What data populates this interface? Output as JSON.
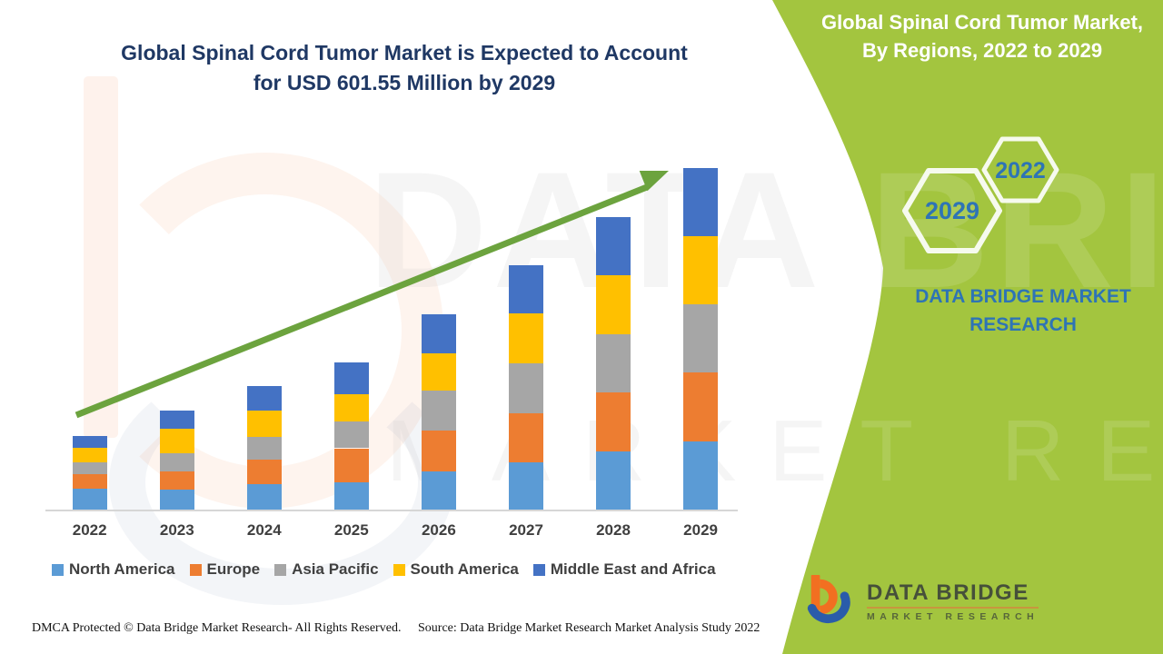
{
  "page": {
    "background": "#FFFFFF",
    "accent_green": "#A3C53F"
  },
  "header": {
    "title_line1": "Global Spinal Cord Tumor Market is Expected to Account",
    "title_line2": "for USD 601.55 Million by 2029",
    "title_color": "#1F3864"
  },
  "side_panel": {
    "title_line1": "Global Spinal Cord Tumor Market,",
    "title_line2": "By Regions, 2022 to 2029",
    "hexagons": [
      {
        "label": "2029"
      },
      {
        "label": "2022"
      }
    ],
    "brand_line1": "DATA BRIDGE MARKET",
    "brand_line2": "RESEARCH",
    "brand_text_color": "#2E74B5"
  },
  "watermark": {
    "line1": "DATA BRIDGE",
    "line2": "MARKET RESEARCH"
  },
  "chart_data": {
    "type": "bar",
    "stacked": true,
    "title": "Global Spinal Cord Tumor Market is Expected to Account for USD 601.55 Million by 2029",
    "unit": "USD Million",
    "categories": [
      "2022",
      "2023",
      "2024",
      "2025",
      "2026",
      "2027",
      "2028",
      "2029"
    ],
    "series": [
      {
        "name": "North America",
        "color": "#5B9BD5",
        "values": [
          37.5,
          35.0,
          45.5,
          48.0,
          67.0,
          83.0,
          102.0,
          120.6
        ]
      },
      {
        "name": "Europe",
        "color": "#ED7D31",
        "values": [
          25.2,
          32.0,
          43.0,
          60.0,
          72.5,
          86.0,
          104.5,
          121.6
        ]
      },
      {
        "name": "Asia Pacific",
        "color": "#A6A6A6",
        "values": [
          19.8,
          32.0,
          40.0,
          47.5,
          70.0,
          88.5,
          102.0,
          119.6
        ]
      },
      {
        "name": "South America",
        "color": "#FFC000",
        "values": [
          25.7,
          43.0,
          45.5,
          48.0,
          66.0,
          88.5,
          104.5,
          120.6
        ]
      },
      {
        "name": "Middle East and Africa",
        "color": "#4472C4",
        "values": [
          21.6,
          32.0,
          43.0,
          56.5,
          69.0,
          84.0,
          102.5,
          119.15
        ]
      }
    ],
    "totals": [
      129.8,
      174.0,
      217.0,
      260.0,
      344.5,
      430.0,
      515.5,
      601.55
    ],
    "projected_2029_total": 601.55,
    "trend_arrow": true,
    "trend_arrow_color": "#6CA33E",
    "legend_position": "bottom",
    "grid": false,
    "axis": {
      "baseline_color": "#D6D6D6",
      "label_color": "#3F3F3F"
    }
  },
  "footer": {
    "left": "DMCA Protected © Data Bridge Market Research- All Rights Reserved.",
    "right": "Source: Data Bridge Market Research Market Analysis Study 2022"
  },
  "logo": {
    "name_top": "DATA BRIDGE",
    "name_bottom": "MARKET RESEARCH"
  }
}
